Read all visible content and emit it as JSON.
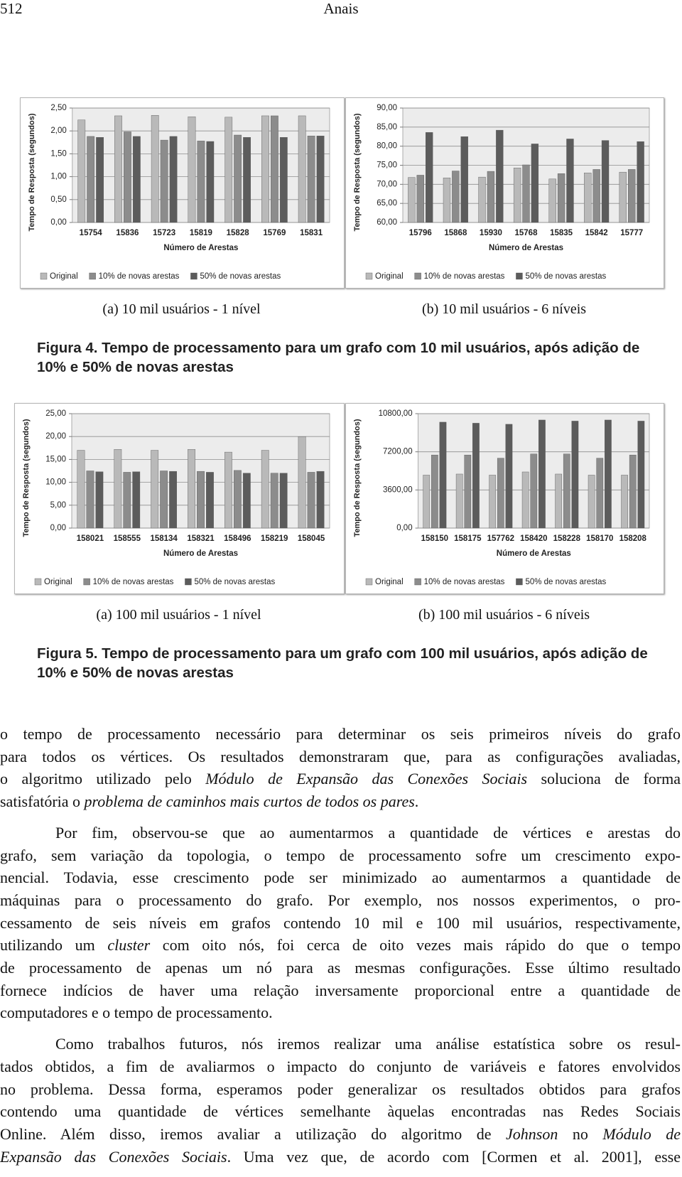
{
  "header": {
    "page_number": "512",
    "running_title": "Anais"
  },
  "chart_data": [
    {
      "type": "bar",
      "caption": "(a) 10 mil usuários - 1 nível",
      "xlabel": "Número de Arestas",
      "ylabel": "Tempo de Resposta (segundos)",
      "categories": [
        "15754",
        "15836",
        "15723",
        "15819",
        "15828",
        "15769",
        "15831"
      ],
      "series": [
        {
          "name": "Original",
          "color": "#b9b9b9",
          "values": [
            2.24,
            2.33,
            2.34,
            2.31,
            2.3,
            2.33,
            2.33
          ]
        },
        {
          "name": "10% de novas arestas",
          "color": "#8c8c8c",
          "values": [
            1.88,
            1.98,
            1.8,
            1.78,
            1.91,
            2.33,
            1.89
          ]
        },
        {
          "name": "50% de novas arestas",
          "color": "#5c5c5c",
          "values": [
            1.86,
            1.88,
            1.88,
            1.77,
            1.86,
            1.86,
            1.89
          ]
        }
      ],
      "ylim": [
        0,
        2.5
      ],
      "yticks": [
        {
          "value": 0,
          "label": "0,00"
        },
        {
          "value": 0.5,
          "label": "0,50"
        },
        {
          "value": 1,
          "label": "1,00"
        },
        {
          "value": 1.5,
          "label": "1,50"
        },
        {
          "value": 2,
          "label": "2,00"
        },
        {
          "value": 2.5,
          "label": "2,50"
        }
      ],
      "grid": true,
      "legend": "bottom"
    },
    {
      "type": "bar",
      "caption": "(b) 10 mil usuários - 6 níveis",
      "xlabel": "Número de Arestas",
      "ylabel": "Tempo de Resposta (segundos)",
      "categories": [
        "15796",
        "15868",
        "15930",
        "15768",
        "15835",
        "15842",
        "15777"
      ],
      "series": [
        {
          "name": "Original",
          "color": "#b9b9b9",
          "values": [
            71.8,
            71.7,
            71.9,
            74.3,
            71.4,
            73.0,
            73.2
          ]
        },
        {
          "name": "10% de novas arestas",
          "color": "#8c8c8c",
          "values": [
            72.4,
            73.5,
            73.4,
            75.1,
            72.8,
            73.9,
            73.9
          ]
        },
        {
          "name": "50% de novas arestas",
          "color": "#5c5c5c",
          "values": [
            83.6,
            82.5,
            84.2,
            80.6,
            81.9,
            81.5,
            81.2
          ]
        }
      ],
      "ylim": [
        60,
        90
      ],
      "yticks": [
        {
          "value": 60,
          "label": "60,00"
        },
        {
          "value": 65,
          "label": "65,00"
        },
        {
          "value": 70,
          "label": "70,00"
        },
        {
          "value": 75,
          "label": "75,00"
        },
        {
          "value": 80,
          "label": "80,00"
        },
        {
          "value": 85,
          "label": "85,00"
        },
        {
          "value": 90,
          "label": "90,00"
        }
      ],
      "grid": true,
      "legend": "bottom"
    },
    {
      "type": "bar",
      "caption": "(a) 100 mil usuários - 1 nível",
      "xlabel": "Número de Arestas",
      "ylabel": "Tempo de Resposta (segundos)",
      "categories": [
        "158021",
        "158555",
        "158134",
        "158321",
        "158496",
        "158219",
        "158045"
      ],
      "series": [
        {
          "name": "Original",
          "color": "#b9b9b9",
          "values": [
            17.0,
            17.2,
            17.0,
            17.2,
            16.6,
            17.0,
            20.0
          ]
        },
        {
          "name": "10% de novas arestas",
          "color": "#8c8c8c",
          "values": [
            12.5,
            12.2,
            12.5,
            12.4,
            12.6,
            12.0,
            12.2
          ]
        },
        {
          "name": "50% de novas arestas",
          "color": "#5c5c5c",
          "values": [
            12.3,
            12.3,
            12.4,
            12.2,
            12.0,
            12.0,
            12.4
          ]
        }
      ],
      "ylim": [
        0,
        25
      ],
      "yticks": [
        {
          "value": 0,
          "label": "0,00"
        },
        {
          "value": 5,
          "label": "5,00"
        },
        {
          "value": 10,
          "label": "10,00"
        },
        {
          "value": 15,
          "label": "15,00"
        },
        {
          "value": 20,
          "label": "20,00"
        },
        {
          "value": 25,
          "label": "25,00"
        }
      ],
      "grid": true,
      "legend": "bottom"
    },
    {
      "type": "bar",
      "caption": "(b) 100 mil usuários - 6 níveis",
      "xlabel": "Número de Arestas",
      "ylabel": "Tempo de Resposta (segundos)",
      "categories": [
        "158150",
        "158175",
        "157762",
        "158420",
        "158228",
        "158170",
        "158208"
      ],
      "series": [
        {
          "name": "Original",
          "color": "#b9b9b9",
          "values": [
            5000,
            5100,
            5000,
            5300,
            5100,
            5000,
            5000
          ]
        },
        {
          "name": "10% de novas arestas",
          "color": "#8c8c8c",
          "values": [
            6900,
            6900,
            6600,
            7000,
            7000,
            6600,
            6900
          ]
        },
        {
          "name": "50% de novas arestas",
          "color": "#5c5c5c",
          "values": [
            10000,
            9900,
            9800,
            10200,
            10100,
            10200,
            10100
          ]
        }
      ],
      "ylim": [
        0,
        10800
      ],
      "yticks": [
        {
          "value": 0,
          "label": "0,00"
        },
        {
          "value": 3600,
          "label": "3600,00"
        },
        {
          "value": 7200,
          "label": "7200,00"
        },
        {
          "value": 10800,
          "label": "10800,00"
        }
      ],
      "grid": true,
      "legend": "bottom"
    }
  ],
  "figures": [
    {
      "caption": "Figura 4. Tempo de processamento para um grafo com 10 mil usuários, após adição de 10% e 50% de novas arestas"
    },
    {
      "caption": "Figura 5. Tempo de processamento para um grafo com 100 mil usuários, após adição de 10% e 50% de novas arestas"
    }
  ],
  "body": {
    "paragraphs": [
      {
        "indent": false,
        "lines": [
          [
            {
              "text": "o tempo de processamento necessário para determinar os seis primeiros níveis do grafo"
            }
          ],
          [
            {
              "text": "para todos os vértices. Os resultados demonstraram que, para as configurações avaliadas,"
            }
          ],
          [
            {
              "text": "o algoritmo utilizado pelo "
            },
            {
              "text": "Módulo de Expansão das Conexões Sociais",
              "italic": true
            },
            {
              "text": " soluciona de forma"
            }
          ],
          [
            {
              "text": "satisfatória o "
            },
            {
              "text": "problema de caminhos mais curtos de todos os pares",
              "italic": true
            },
            {
              "text": "."
            }
          ]
        ]
      },
      {
        "indent": true,
        "lines": [
          [
            {
              "text": "Por fim, observou-se que ao aumentarmos a quantidade de vértices e arestas do"
            }
          ],
          [
            {
              "text": "grafo, sem variação da topologia, o tempo de processamento sofre um crescimento expo-"
            }
          ],
          [
            {
              "text": "nencial. Todavia, esse crescimento pode ser minimizado ao aumentarmos a quantidade de"
            }
          ],
          [
            {
              "text": "máquinas para o processamento do grafo. Por exemplo, nos nossos experimentos, o pro-"
            }
          ],
          [
            {
              "text": "cessamento de seis níveis em grafos contendo 10 mil e 100 mil usuários, respectivamente,"
            }
          ],
          [
            {
              "text": "utilizando um "
            },
            {
              "text": "cluster",
              "italic": true
            },
            {
              "text": " com oito nós, foi cerca de oito vezes mais rápido do que o tempo"
            }
          ],
          [
            {
              "text": "de processamento de apenas um nó para as mesmas configurações. Esse último resultado"
            }
          ],
          [
            {
              "text": "fornece indícios de haver uma relação inversamente proporcional entre a quantidade de"
            }
          ],
          [
            {
              "text": "computadores e o tempo de processamento."
            }
          ]
        ]
      },
      {
        "indent": true,
        "lines": [
          [
            {
              "text": "Como trabalhos futuros, nós iremos realizar uma análise estatística sobre os resul-"
            }
          ],
          [
            {
              "text": "tados obtidos, a fim de avaliarmos o impacto do conjunto de variáveis e fatores envolvidos"
            }
          ],
          [
            {
              "text": "no problema. Dessa forma, esperamos poder generalizar os resultados obtidos para grafos"
            }
          ],
          [
            {
              "text": "contendo uma quantidade de vértices semelhante àquelas encontradas nas Redes Sociais"
            }
          ],
          [
            {
              "text": "Online. Além disso, iremos avaliar a utilização do algoritmo de "
            },
            {
              "text": "Johnson",
              "italic": true
            },
            {
              "text": " no "
            },
            {
              "text": "Módulo de",
              "italic": true
            }
          ],
          [
            {
              "text": "Expansão das Conexões Sociais",
              "italic": true
            },
            {
              "text": ". Uma vez que, de acordo com [Cormen et al. 2001], esse"
            }
          ]
        ]
      }
    ]
  }
}
